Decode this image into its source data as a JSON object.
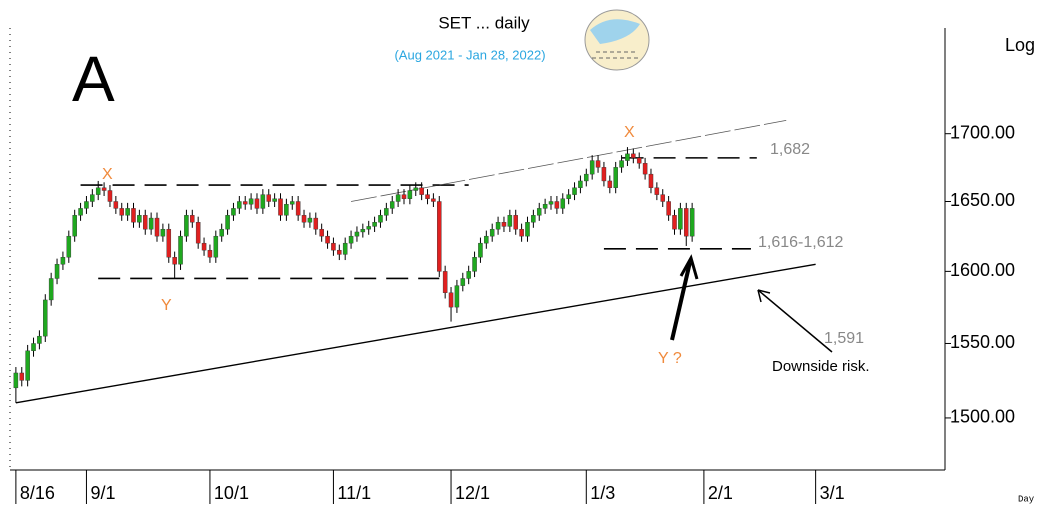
{
  "chart_data": {
    "type": "candlestick",
    "title": "SET ... daily",
    "subtitle": "(Aug 2021 - Jan 28, 2022)",
    "panel_label": "A",
    "scale_label": "Log",
    "corner_label": "Day",
    "log_scale": true,
    "up_color": "#1fa81f",
    "down_color": "#e02020",
    "xlim": [
      -1,
      158
    ],
    "xticks": [
      {
        "value": 0,
        "label": "8/16"
      },
      {
        "value": 12,
        "label": "9/1"
      },
      {
        "value": 33,
        "label": "10/1"
      },
      {
        "value": 54,
        "label": "11/1"
      },
      {
        "value": 74,
        "label": "12/1"
      },
      {
        "value": 97,
        "label": "1/3"
      },
      {
        "value": 117,
        "label": "2/1"
      },
      {
        "value": 136,
        "label": "3/1"
      }
    ],
    "ylim": [
      1466,
      1781
    ],
    "yticks": [
      {
        "value": 1500,
        "label": "1500.00"
      },
      {
        "value": 1550,
        "label": "1550.00"
      },
      {
        "value": 1600,
        "label": "1600.00"
      },
      {
        "value": 1650,
        "label": "1650.00"
      },
      {
        "value": 1700,
        "label": "1700.00"
      }
    ],
    "open": [
      1520,
      1530,
      1525,
      1545,
      1550,
      1555,
      1580,
      1595,
      1605,
      1610,
      1625,
      1640,
      1645,
      1650,
      1655,
      1660,
      1658,
      1650,
      1645,
      1640,
      1645,
      1635,
      1640,
      1630,
      1638,
      1625,
      1630,
      1610,
      1605,
      1625,
      1640,
      1635,
      1620,
      1615,
      1610,
      1625,
      1630,
      1640,
      1645,
      1650,
      1648,
      1652,
      1645,
      1655,
      1650,
      1652,
      1640,
      1648,
      1650,
      1640,
      1635,
      1638,
      1630,
      1625,
      1620,
      1615,
      1612,
      1620,
      1625,
      1628,
      1630,
      1632,
      1635,
      1640,
      1645,
      1650,
      1655,
      1652,
      1658,
      1660,
      1655,
      1652,
      1650,
      1600,
      1585,
      1575,
      1590,
      1595,
      1600,
      1610,
      1620,
      1625,
      1630,
      1635,
      1632,
      1640,
      1630,
      1625,
      1635,
      1640,
      1645,
      1648,
      1650,
      1645,
      1652,
      1655,
      1660,
      1665,
      1670,
      1680,
      1675,
      1665,
      1660,
      1675,
      1680,
      1685,
      1682,
      1678,
      1670,
      1660,
      1655,
      1650,
      1640,
      1630,
      1645,
      1625
    ],
    "high": [
      1534,
      1534,
      1549,
      1554,
      1559,
      1584,
      1599,
      1609,
      1614,
      1629,
      1644,
      1649,
      1654,
      1659,
      1665,
      1664,
      1662,
      1654,
      1649,
      1649,
      1649,
      1644,
      1644,
      1642,
      1642,
      1634,
      1634,
      1614,
      1629,
      1644,
      1644,
      1639,
      1624,
      1619,
      1629,
      1634,
      1644,
      1649,
      1654,
      1654,
      1656,
      1656,
      1659,
      1659,
      1656,
      1656,
      1652,
      1654,
      1654,
      1644,
      1642,
      1642,
      1634,
      1629,
      1624,
      1619,
      1624,
      1629,
      1632,
      1634,
      1636,
      1639,
      1644,
      1649,
      1654,
      1659,
      1659,
      1662,
      1664,
      1664,
      1659,
      1656,
      1654,
      1604,
      1589,
      1594,
      1599,
      1604,
      1614,
      1624,
      1629,
      1634,
      1639,
      1639,
      1644,
      1644,
      1634,
      1639,
      1644,
      1649,
      1652,
      1654,
      1654,
      1656,
      1659,
      1664,
      1669,
      1674,
      1684,
      1684,
      1679,
      1669,
      1679,
      1684,
      1690,
      1689,
      1686,
      1682,
      1674,
      1664,
      1659,
      1654,
      1644,
      1649,
      1649,
      1649
    ],
    "low": [
      1510,
      1521,
      1521,
      1541,
      1546,
      1551,
      1576,
      1591,
      1601,
      1606,
      1621,
      1636,
      1641,
      1646,
      1651,
      1654,
      1646,
      1641,
      1636,
      1636,
      1631,
      1631,
      1626,
      1626,
      1621,
      1621,
      1606,
      1595,
      1601,
      1621,
      1631,
      1616,
      1611,
      1606,
      1606,
      1621,
      1626,
      1636,
      1641,
      1644,
      1644,
      1641,
      1641,
      1646,
      1646,
      1636,
      1636,
      1644,
      1636,
      1631,
      1631,
      1626,
      1621,
      1616,
      1611,
      1608,
      1608,
      1616,
      1621,
      1624,
      1626,
      1628,
      1631,
      1636,
      1641,
      1646,
      1648,
      1648,
      1654,
      1651,
      1648,
      1646,
      1596,
      1581,
      1565,
      1571,
      1586,
      1591,
      1596,
      1606,
      1616,
      1621,
      1626,
      1628,
      1628,
      1626,
      1621,
      1621,
      1631,
      1636,
      1641,
      1644,
      1641,
      1641,
      1648,
      1651,
      1656,
      1661,
      1666,
      1671,
      1661,
      1656,
      1656,
      1671,
      1676,
      1678,
      1674,
      1666,
      1656,
      1651,
      1646,
      1636,
      1626,
      1626,
      1618,
      1621
    ],
    "close": [
      1530,
      1525,
      1545,
      1550,
      1555,
      1580,
      1595,
      1605,
      1610,
      1625,
      1640,
      1645,
      1650,
      1655,
      1660,
      1658,
      1650,
      1645,
      1640,
      1645,
      1635,
      1640,
      1630,
      1638,
      1625,
      1630,
      1610,
      1605,
      1625,
      1640,
      1635,
      1620,
      1615,
      1610,
      1625,
      1630,
      1640,
      1645,
      1650,
      1648,
      1652,
      1645,
      1655,
      1650,
      1652,
      1640,
      1648,
      1650,
      1640,
      1635,
      1638,
      1630,
      1625,
      1620,
      1615,
      1612,
      1620,
      1625,
      1628,
      1630,
      1632,
      1635,
      1640,
      1645,
      1650,
      1655,
      1652,
      1658,
      1660,
      1655,
      1652,
      1650,
      1600,
      1585,
      1575,
      1590,
      1595,
      1600,
      1610,
      1620,
      1625,
      1630,
      1635,
      1632,
      1640,
      1630,
      1625,
      1635,
      1640,
      1645,
      1648,
      1650,
      1645,
      1652,
      1655,
      1660,
      1665,
      1670,
      1680,
      1675,
      1665,
      1660,
      1675,
      1680,
      1685,
      1682,
      1678,
      1670,
      1660,
      1655,
      1650,
      1640,
      1630,
      1645,
      1625,
      1645
    ],
    "lines": [
      {
        "x": [
          11,
          77
        ],
        "y": [
          1662,
          1662
        ],
        "style": "dashed"
      },
      {
        "x": [
          14,
          72
        ],
        "y": [
          1595,
          1595
        ],
        "style": "dashed"
      },
      {
        "x": [
          103,
          126
        ],
        "y": [
          1682,
          1682
        ],
        "style": "dashed"
      },
      {
        "x": [
          100,
          125
        ],
        "y": [
          1616,
          1616
        ],
        "style": "dashed"
      },
      {
        "x": [
          0,
          136
        ],
        "y": [
          1510,
          1605
        ],
        "style": "solid"
      },
      {
        "x": [
          57,
          131
        ],
        "y": [
          1650,
          1710
        ],
        "style": "thin"
      }
    ],
    "annotations": [
      "X",
      "Y",
      "X",
      "Y ?",
      "1,682",
      "1,616-1,612",
      "1,591",
      "Downside risk."
    ]
  }
}
